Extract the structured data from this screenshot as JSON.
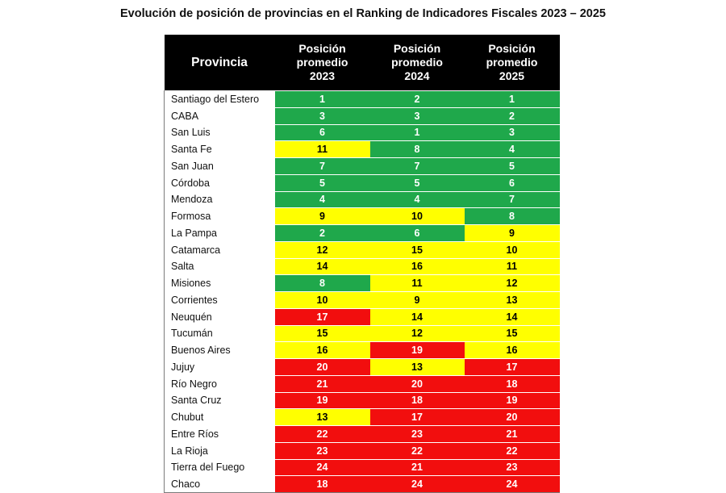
{
  "title": "Evolución de posición de provincias en el Ranking de Indicadores Fiscales 2023 – 2025",
  "colors": {
    "green": "#1fa84b",
    "yellow": "#ffff00",
    "red": "#f20e0e",
    "header": "#000000"
  },
  "chart_data": {
    "type": "table",
    "title": "Evolución de posición de provincias en el Ranking de Indicadores Fiscales 2023 – 2025",
    "columns": [
      "Provincia",
      "Posición promedio 2023",
      "Posición promedio 2024",
      "Posición promedio 2025"
    ],
    "header_lines": [
      [
        "Provincia"
      ],
      [
        "Posición",
        "promedio",
        "2023"
      ],
      [
        "Posición",
        "promedio",
        "2024"
      ],
      [
        "Posición",
        "promedio",
        "2025"
      ]
    ],
    "rows": [
      {
        "provincia": "Santiago del Estero",
        "v2023": "1",
        "c2023": "green",
        "v2024": "2",
        "c2024": "green",
        "v2025": "1",
        "c2025": "green"
      },
      {
        "provincia": "CABA",
        "v2023": "3",
        "c2023": "green",
        "v2024": "3",
        "c2024": "green",
        "v2025": "2",
        "c2025": "green"
      },
      {
        "provincia": "San Luis",
        "v2023": "6",
        "c2023": "green",
        "v2024": "1",
        "c2024": "green",
        "v2025": "3",
        "c2025": "green"
      },
      {
        "provincia": "Santa Fe",
        "v2023": "11",
        "c2023": "yellow",
        "v2024": "8",
        "c2024": "green",
        "v2025": "4",
        "c2025": "green"
      },
      {
        "provincia": "San Juan",
        "v2023": "7",
        "c2023": "green",
        "v2024": "7",
        "c2024": "green",
        "v2025": "5",
        "c2025": "green"
      },
      {
        "provincia": "Córdoba",
        "v2023": "5",
        "c2023": "green",
        "v2024": "5",
        "c2024": "green",
        "v2025": "6",
        "c2025": "green"
      },
      {
        "provincia": "Mendoza",
        "v2023": "4",
        "c2023": "green",
        "v2024": "4",
        "c2024": "green",
        "v2025": "7",
        "c2025": "green"
      },
      {
        "provincia": "Formosa",
        "v2023": "9",
        "c2023": "yellow",
        "v2024": "10",
        "c2024": "yellow",
        "v2025": "8",
        "c2025": "green"
      },
      {
        "provincia": "La Pampa",
        "v2023": "2",
        "c2023": "green",
        "v2024": "6",
        "c2024": "green",
        "v2025": "9",
        "c2025": "yellow"
      },
      {
        "provincia": "Catamarca",
        "v2023": "12",
        "c2023": "yellow",
        "v2024": "15",
        "c2024": "yellow",
        "v2025": "10",
        "c2025": "yellow"
      },
      {
        "provincia": "Salta",
        "v2023": "14",
        "c2023": "yellow",
        "v2024": "16",
        "c2024": "yellow",
        "v2025": "11",
        "c2025": "yellow"
      },
      {
        "provincia": "Misiones",
        "v2023": "8",
        "c2023": "green",
        "v2024": "11",
        "c2024": "yellow",
        "v2025": "12",
        "c2025": "yellow"
      },
      {
        "provincia": "Corrientes",
        "v2023": "10",
        "c2023": "yellow",
        "v2024": "9",
        "c2024": "yellow",
        "v2025": "13",
        "c2025": "yellow"
      },
      {
        "provincia": "Neuquén",
        "v2023": "17",
        "c2023": "red",
        "v2024": "14",
        "c2024": "yellow",
        "v2025": "14",
        "c2025": "yellow"
      },
      {
        "provincia": "Tucumán",
        "v2023": "15",
        "c2023": "yellow",
        "v2024": "12",
        "c2024": "yellow",
        "v2025": "15",
        "c2025": "yellow"
      },
      {
        "provincia": "Buenos Aires",
        "v2023": "16",
        "c2023": "yellow",
        "v2024": "19",
        "c2024": "red",
        "v2025": "16",
        "c2025": "yellow"
      },
      {
        "provincia": "Jujuy",
        "v2023": "20",
        "c2023": "red",
        "v2024": "13",
        "c2024": "yellow",
        "v2025": "17",
        "c2025": "red"
      },
      {
        "provincia": "Río Negro",
        "v2023": "21",
        "c2023": "red",
        "v2024": "20",
        "c2024": "red",
        "v2025": "18",
        "c2025": "red"
      },
      {
        "provincia": "Santa Cruz",
        "v2023": "19",
        "c2023": "red",
        "v2024": "18",
        "c2024": "red",
        "v2025": "19",
        "c2025": "red"
      },
      {
        "provincia": "Chubut",
        "v2023": "13",
        "c2023": "yellow",
        "v2024": "17",
        "c2024": "red",
        "v2025": "20",
        "c2025": "red"
      },
      {
        "provincia": "Entre Ríos",
        "v2023": "22",
        "c2023": "red",
        "v2024": "23",
        "c2024": "red",
        "v2025": "21",
        "c2025": "red"
      },
      {
        "provincia": "La Rioja",
        "v2023": "23",
        "c2023": "red",
        "v2024": "22",
        "c2024": "red",
        "v2025": "22",
        "c2025": "red"
      },
      {
        "provincia": "Tierra del Fuego",
        "v2023": "24",
        "c2023": "red",
        "v2024": "21",
        "c2024": "red",
        "v2025": "23",
        "c2025": "red"
      },
      {
        "provincia": "Chaco",
        "v2023": "18",
        "c2023": "red",
        "v2024": "24",
        "c2024": "red",
        "v2025": "24",
        "c2025": "red"
      }
    ]
  }
}
